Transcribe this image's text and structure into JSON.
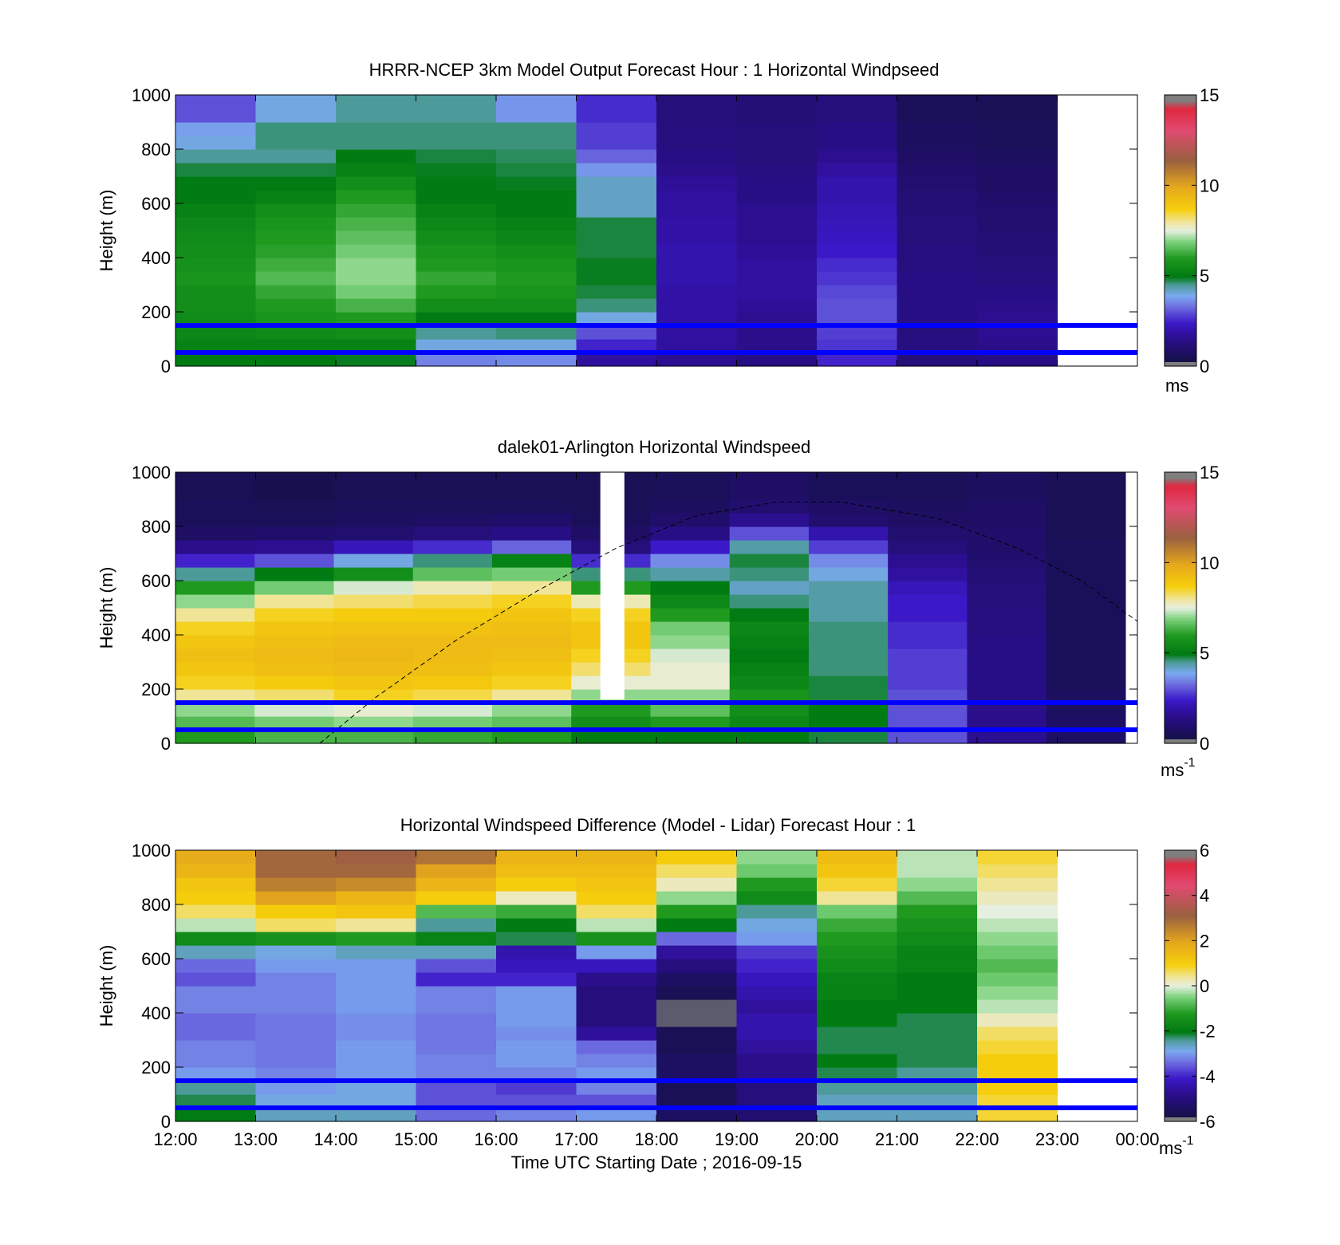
{
  "time_axis": {
    "label": "Time UTC  Starting Date ; 2016-09-15",
    "tick_labels": [
      "12:00",
      "13:00",
      "14:00",
      "15:00",
      "16:00",
      "17:00",
      "18:00",
      "19:00",
      "20:00",
      "21:00",
      "22:00",
      "23:00",
      "00:00"
    ]
  },
  "chart_data": [
    {
      "type": "heatmap",
      "title": "HRRR-NCEP 3km Model Output   Forecast Hour : 1 Horizontal Windpseed",
      "ylabel": "Height (m)",
      "ylim": [
        0,
        1000
      ],
      "y_ticks": [
        "0",
        "200",
        "400",
        "600",
        "800",
        "1000"
      ],
      "x_range_hours": [
        12,
        24
      ],
      "data_end_hour": 23,
      "colorbar": {
        "range": [
          0,
          15
        ],
        "ticks": [
          "0",
          "5",
          "10",
          "15"
        ],
        "unit": "ms"
      },
      "reference_heights_m": [
        150,
        50
      ],
      "heights_m": [
        25,
        75,
        125,
        175,
        225,
        275,
        325,
        375,
        425,
        475,
        525,
        575,
        625,
        675,
        725,
        775,
        825,
        875,
        925,
        975
      ],
      "hourly_profiles_ms": [
        [
          5.0,
          5.2,
          5.4,
          5.5,
          5.6,
          5.6,
          5.8,
          5.7,
          5.6,
          5.5,
          5.4,
          5.2,
          5.0,
          5.0,
          4.8,
          4.5,
          4.0,
          3.8,
          3.0,
          3.0
        ],
        [
          5.0,
          5.2,
          5.5,
          5.8,
          6.0,
          6.2,
          6.5,
          6.3,
          6.1,
          6.0,
          5.8,
          5.6,
          5.2,
          5.0,
          4.8,
          4.5,
          4.6,
          4.6,
          4.0,
          4.0
        ],
        [
          4.9,
          5.2,
          5.6,
          6.0,
          6.4,
          6.8,
          7.0,
          7.0,
          6.8,
          6.6,
          6.4,
          6.2,
          6.0,
          5.6,
          5.2,
          5.0,
          4.6,
          4.6,
          4.5,
          4.5
        ],
        [
          3.5,
          4.0,
          4.5,
          5.0,
          5.6,
          6.0,
          6.2,
          6.0,
          5.8,
          5.6,
          5.4,
          5.2,
          5.0,
          5.0,
          4.9,
          4.8,
          4.6,
          4.6,
          4.5,
          4.5
        ],
        [
          3.6,
          4.0,
          4.6,
          5.0,
          5.6,
          5.8,
          6.0,
          5.8,
          5.6,
          5.4,
          5.2,
          5.0,
          5.0,
          4.9,
          4.8,
          4.7,
          4.6,
          4.6,
          3.7,
          3.7
        ],
        [
          1.8,
          2.5,
          3.0,
          4.0,
          4.6,
          4.8,
          4.9,
          4.9,
          4.8,
          4.8,
          4.8,
          4.2,
          4.2,
          4.2,
          3.7,
          3.2,
          2.8,
          2.8,
          2.6,
          2.6
        ],
        [
          1.6,
          1.8,
          1.8,
          1.9,
          1.9,
          1.9,
          2.0,
          2.0,
          2.0,
          1.9,
          1.9,
          1.8,
          1.8,
          1.7,
          1.5,
          1.4,
          1.3,
          1.3,
          1.2,
          1.2
        ],
        [
          1.4,
          1.5,
          1.5,
          1.6,
          1.7,
          1.8,
          1.8,
          1.8,
          1.7,
          1.6,
          1.6,
          1.6,
          1.4,
          1.4,
          1.3,
          1.2,
          1.2,
          1.2,
          1.1,
          1.1
        ],
        [
          2.5,
          2.7,
          2.8,
          3.0,
          3.0,
          2.9,
          2.7,
          2.6,
          2.4,
          2.3,
          2.2,
          2.1,
          2.0,
          2.0,
          1.8,
          1.6,
          1.4,
          1.4,
          1.2,
          1.2
        ],
        [
          1.2,
          1.3,
          1.3,
          1.4,
          1.4,
          1.4,
          1.4,
          1.3,
          1.3,
          1.2,
          1.2,
          1.1,
          1.1,
          1.0,
          0.9,
          0.8,
          0.7,
          0.7,
          0.6,
          0.6
        ],
        [
          1.4,
          1.5,
          1.6,
          1.6,
          1.5,
          1.4,
          1.3,
          1.2,
          1.1,
          1.1,
          1.0,
          1.0,
          0.9,
          0.8,
          0.8,
          0.7,
          0.6,
          0.6,
          0.5,
          0.5
        ]
      ]
    },
    {
      "type": "heatmap",
      "title": "dalek01-Arlington  Horizontal Windspeed",
      "ylabel": "Height (m)",
      "ylim": [
        0,
        1000
      ],
      "y_ticks": [
        "0",
        "200",
        "400",
        "600",
        "800",
        "1000"
      ],
      "x_range_hours": [
        12,
        24
      ],
      "data_end_hour": 23.85,
      "gap_hours": [
        17.3,
        17.6
      ],
      "colorbar": {
        "range": [
          0,
          15
        ],
        "ticks": [
          "0",
          "5",
          "10",
          "15"
        ],
        "unit": "ms",
        "unit_exponent": "-1"
      },
      "reference_heights_m": [
        150,
        50
      ],
      "overlay_curve": {
        "style": "dashed",
        "points": [
          [
            13.8,
            0
          ],
          [
            14.5,
            170
          ],
          [
            15.5,
            380
          ],
          [
            16.5,
            560
          ],
          [
            17.5,
            720
          ],
          [
            18.5,
            840
          ],
          [
            19.5,
            890
          ],
          [
            20.3,
            890
          ],
          [
            21.5,
            830
          ],
          [
            22.5,
            720
          ],
          [
            23.3,
            600
          ],
          [
            24,
            450
          ]
        ]
      },
      "hourly_profiles_ms": [
        [
          6.0,
          6.5,
          7.0,
          8.0,
          8.6,
          9.0,
          9.2,
          9.0,
          8.6,
          8.0,
          7.0,
          6.0,
          4.5,
          2.5,
          1.5,
          0.8,
          0.6,
          0.6,
          0.5,
          0.5
        ],
        [
          6.4,
          6.8,
          7.4,
          8.2,
          8.8,
          9.2,
          9.3,
          9.2,
          9.0,
          8.6,
          8.0,
          6.8,
          5.0,
          3.0,
          1.6,
          0.9,
          0.6,
          0.5,
          0.4,
          0.4
        ],
        [
          6.4,
          7.0,
          7.6,
          8.6,
          9.0,
          9.3,
          9.4,
          9.3,
          9.1,
          8.8,
          8.2,
          7.4,
          5.6,
          4.0,
          2.2,
          1.0,
          0.7,
          0.6,
          0.5,
          0.5
        ],
        [
          6.2,
          6.8,
          7.4,
          8.4,
          8.9,
          9.2,
          9.3,
          9.3,
          9.1,
          8.8,
          8.4,
          7.8,
          6.6,
          4.6,
          2.6,
          1.2,
          0.8,
          0.6,
          0.5,
          0.5
        ],
        [
          6.0,
          6.6,
          7.0,
          8.0,
          8.6,
          9.0,
          9.2,
          9.3,
          9.2,
          9.0,
          8.6,
          8.0,
          6.8,
          5.2,
          3.2,
          1.4,
          0.9,
          0.6,
          0.5,
          0.5
        ],
        [
          5.0,
          5.6,
          6.0,
          7.0,
          7.6,
          8.2,
          8.6,
          9.0,
          9.0,
          8.6,
          7.8,
          6.0,
          4.6,
          2.6,
          1.2,
          0.8,
          0.6,
          0.5,
          0.5,
          0.5
        ],
        [
          5.0,
          6.0,
          6.6,
          7.0,
          7.6,
          7.6,
          7.4,
          7.0,
          6.8,
          6.0,
          5.4,
          5.0,
          4.4,
          3.6,
          2.4,
          1.4,
          0.9,
          0.7,
          0.6,
          0.6
        ],
        [
          5.0,
          5.4,
          5.6,
          5.8,
          5.4,
          5.2,
          5.0,
          5.2,
          5.4,
          5.0,
          4.6,
          4.2,
          4.6,
          4.8,
          4.4,
          3.0,
          1.6,
          1.0,
          0.8,
          0.8
        ],
        [
          4.8,
          5.0,
          5.0,
          4.8,
          4.8,
          4.6,
          4.6,
          4.6,
          4.6,
          4.4,
          4.4,
          4.4,
          4.0,
          3.6,
          2.8,
          2.0,
          1.0,
          0.8,
          0.6,
          0.6
        ],
        [
          3.0,
          3.0,
          3.0,
          3.0,
          2.8,
          2.8,
          2.8,
          2.6,
          2.6,
          2.4,
          2.4,
          2.2,
          1.8,
          1.6,
          1.2,
          1.0,
          0.8,
          0.7,
          0.6,
          0.6
        ],
        [
          1.6,
          1.5,
          1.5,
          1.4,
          1.4,
          1.4,
          1.4,
          1.4,
          1.3,
          1.3,
          1.2,
          1.2,
          1.1,
          1.0,
          0.9,
          0.9,
          0.8,
          0.8,
          0.7,
          0.7
        ],
        [
          0.8,
          0.8,
          0.7,
          0.7,
          0.6,
          0.6,
          0.6,
          0.6,
          0.6,
          0.6,
          0.6,
          0.6,
          0.6,
          0.6,
          0.6,
          0.5,
          0.5,
          0.5,
          0.5,
          0.5
        ]
      ]
    },
    {
      "type": "heatmap",
      "title": "Horizontal Windspeed Difference (Model - Lidar) Forecast Hour : 1",
      "ylabel": "Height (m)",
      "ylim": [
        0,
        1000
      ],
      "y_ticks": [
        "0",
        "200",
        "400",
        "600",
        "800",
        "1000"
      ],
      "x_range_hours": [
        12,
        24
      ],
      "data_end_hour": 23,
      "colorbar": {
        "range": [
          -6,
          6
        ],
        "ticks": [
          "-6",
          "-4",
          "-2",
          "0",
          "2",
          "4",
          "6"
        ],
        "unit": "ms",
        "unit_exponent": "-1"
      },
      "reference_heights_m": [
        150,
        50
      ],
      "hourly_profiles_ms": [
        [
          -2.0,
          -2.2,
          -2.4,
          -3.0,
          -3.2,
          -3.2,
          -3.4,
          -3.4,
          -3.2,
          -3.2,
          -3.6,
          -3.4,
          -2.6,
          -1.6,
          -0.2,
          0.6,
          1.0,
          1.2,
          1.6,
          1.8
        ],
        [
          -2.6,
          -2.8,
          -3.0,
          -3.2,
          -3.3,
          -3.3,
          -3.3,
          -3.3,
          -3.2,
          -3.2,
          -3.2,
          -3.0,
          -2.8,
          -1.4,
          0.6,
          1.0,
          2.0,
          2.6,
          3.0,
          3.0
        ],
        [
          -2.6,
          -2.8,
          -2.8,
          -3.0,
          -3.0,
          -3.0,
          -3.1,
          -3.1,
          -3.0,
          -3.0,
          -3.0,
          -3.0,
          -2.6,
          -1.2,
          0.4,
          1.2,
          1.6,
          2.4,
          3.0,
          3.2
        ],
        [
          -3.4,
          -3.6,
          -3.6,
          -3.2,
          -3.2,
          -3.3,
          -3.3,
          -3.3,
          -3.2,
          -3.2,
          -4.0,
          -3.6,
          -2.6,
          -1.8,
          -2.4,
          -0.8,
          1.0,
          1.6,
          2.0,
          2.8
        ],
        [
          -3.2,
          -3.6,
          -3.8,
          -3.2,
          -3.0,
          -3.0,
          -3.1,
          -3.0,
          -3.0,
          -3.0,
          -4.0,
          -4.2,
          -4.4,
          -2.2,
          -2.0,
          -1.0,
          0.2,
          1.0,
          1.4,
          1.6
        ],
        [
          -3.0,
          -3.6,
          -3.2,
          -3.0,
          -3.2,
          -3.4,
          -4.6,
          -5.0,
          -5.0,
          -5.0,
          -4.8,
          -4.2,
          -3.0,
          -1.4,
          -0.2,
          0.6,
          1.0,
          1.2,
          1.4,
          1.6
        ],
        [
          -5.4,
          -5.6,
          -5.6,
          -5.4,
          -5.4,
          -5.6,
          -5.6,
          -5.8,
          -5.8,
          -5.6,
          -5.4,
          -5.0,
          -4.6,
          -3.4,
          -2.0,
          -1.2,
          -0.4,
          0.2,
          0.6,
          1.0
        ],
        [
          -5.2,
          -5.0,
          -5.0,
          -4.8,
          -4.8,
          -4.6,
          -4.4,
          -4.4,
          -4.6,
          -4.4,
          -4.2,
          -4.0,
          -3.8,
          -3.0,
          -2.8,
          -2.4,
          -1.6,
          -1.2,
          -0.6,
          -0.4
        ],
        [
          -2.6,
          -2.6,
          -2.4,
          -2.2,
          -2.0,
          -2.2,
          -2.2,
          -2.0,
          -2.0,
          -1.8,
          -1.8,
          -1.6,
          -1.4,
          -1.2,
          -1.0,
          -0.6,
          0.4,
          0.8,
          1.2,
          1.4
        ],
        [
          -2.6,
          -2.6,
          -2.4,
          -2.4,
          -2.2,
          -2.2,
          -2.2,
          -2.2,
          -2.0,
          -2.0,
          -2.0,
          -1.8,
          -1.8,
          -1.6,
          -1.4,
          -1.2,
          -0.8,
          -0.4,
          -0.2,
          -0.2
        ],
        [
          0.8,
          0.8,
          1.0,
          1.0,
          1.0,
          0.8,
          0.6,
          0.2,
          -0.2,
          -0.4,
          -0.6,
          -0.8,
          -0.6,
          -0.4,
          -0.2,
          0.0,
          0.2,
          0.4,
          0.6,
          0.8
        ]
      ]
    }
  ]
}
